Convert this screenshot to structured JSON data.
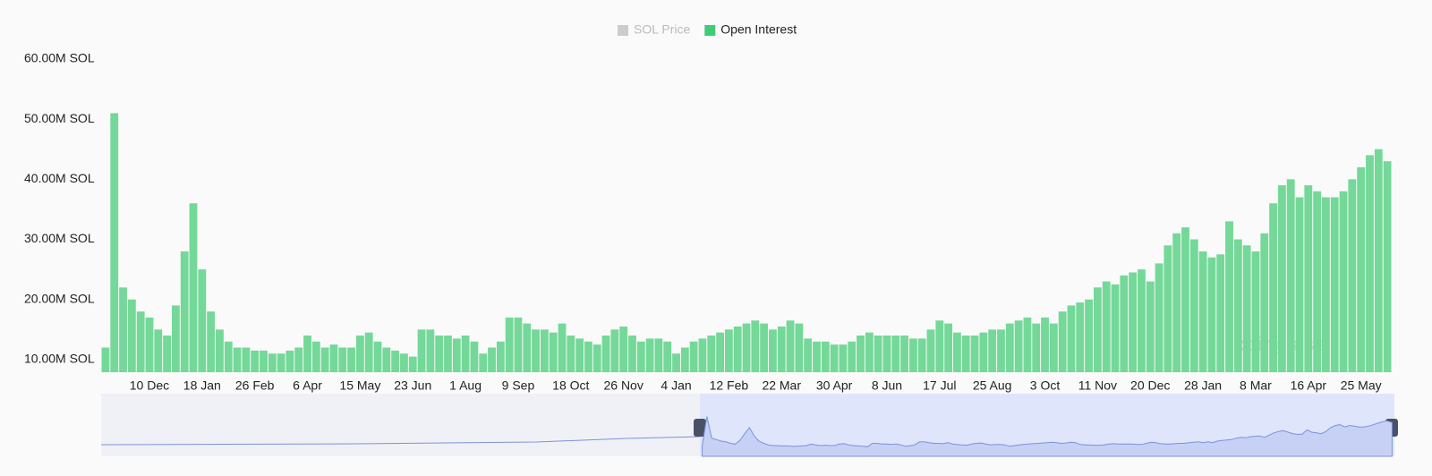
{
  "chart_data": {
    "type": "bar",
    "legend": [
      {
        "name": "SOL Price",
        "color": "#cccccc",
        "active": false
      },
      {
        "name": "Open Interest",
        "color": "#3fcc77",
        "active": true
      }
    ],
    "series": [
      {
        "name": "Open Interest",
        "color": "#74d898",
        "values": [
          12,
          51,
          22,
          20,
          18,
          17,
          15,
          14,
          19,
          28,
          36,
          25,
          18,
          15,
          13,
          12,
          12,
          11.5,
          11.5,
          11,
          11,
          11.5,
          12,
          14,
          13,
          12,
          12.5,
          12,
          12,
          14,
          14.5,
          13,
          12,
          11.5,
          11,
          10.5,
          15,
          15,
          14,
          14,
          13.5,
          14,
          13,
          11,
          12,
          13,
          17,
          17,
          16,
          15,
          15,
          14.5,
          16,
          14,
          13.5,
          13,
          12.5,
          14,
          15,
          15.5,
          14,
          13,
          13.5,
          13.5,
          13,
          11,
          12,
          13,
          13.5,
          14,
          14.5,
          15,
          15.5,
          16,
          16.5,
          16,
          15,
          15.5,
          16.5,
          16,
          13.5,
          13,
          13,
          12.5,
          12.5,
          13,
          14,
          14.5,
          14,
          14,
          14,
          14,
          13.5,
          13.5,
          15,
          16.5,
          16,
          14.5,
          14,
          14,
          14.5,
          15,
          15,
          16,
          16.5,
          17,
          16,
          17,
          16,
          18,
          19,
          19.5,
          20,
          22,
          23,
          22.5,
          24,
          24.5,
          25,
          23,
          26,
          29,
          31,
          32,
          30,
          28,
          27,
          27.5,
          33,
          30,
          29,
          28,
          31,
          36,
          39,
          40,
          37,
          39,
          38,
          37,
          37,
          38,
          40,
          42,
          44,
          45,
          43
        ]
      }
    ],
    "categories": [
      null,
      null,
      null,
      null,
      null,
      "10 Dec",
      null,
      null,
      null,
      null,
      null,
      "18 Jan",
      null,
      null,
      null,
      null,
      null,
      "26 Feb",
      null,
      null,
      null,
      null,
      null,
      "6 Apr",
      null,
      null,
      null,
      null,
      null,
      "15 May",
      null,
      null,
      null,
      null,
      null,
      "23 Jun",
      null,
      null,
      null,
      null,
      null,
      "1 Aug",
      null,
      null,
      null,
      null,
      null,
      "9 Sep",
      null,
      null,
      null,
      null,
      null,
      "18 Oct",
      null,
      null,
      null,
      null,
      null,
      "26 Nov",
      null,
      null,
      null,
      null,
      null,
      "4 Jan",
      null,
      null,
      null,
      null,
      null,
      "12 Feb",
      null,
      null,
      null,
      null,
      null,
      "22 Mar",
      null,
      null,
      null,
      null,
      null,
      "30 Apr",
      null,
      null,
      null,
      null,
      null,
      "8 Jun",
      null,
      null,
      null,
      null,
      null,
      "17 Jul",
      null,
      null,
      null,
      null,
      null,
      "25 Aug",
      null,
      null,
      null,
      null,
      null,
      "3 Oct",
      null,
      null,
      null,
      null,
      null,
      "11 Nov",
      null,
      null,
      null,
      null,
      null,
      "20 Dec",
      null,
      null,
      null,
      null,
      null,
      "28 Jan",
      null,
      null,
      null,
      null,
      null,
      "8 Mar",
      null,
      null,
      null,
      null,
      null,
      "16 Apr",
      null,
      null,
      null,
      null,
      null,
      "25 May",
      null,
      null,
      null
    ],
    "ylim": [
      7.9,
      60
    ],
    "yticks": [
      {
        "value": 10,
        "label": "10.00M SOL"
      },
      {
        "value": 20,
        "label": "20.00M SOL"
      },
      {
        "value": 30,
        "label": "30.00M SOL"
      },
      {
        "value": 40,
        "label": "40.00M SOL"
      },
      {
        "value": 50,
        "label": "50.00M SOL"
      },
      {
        "value": 60,
        "label": "60.00M SOL"
      }
    ],
    "grid": false,
    "watermark": "coinglass"
  }
}
